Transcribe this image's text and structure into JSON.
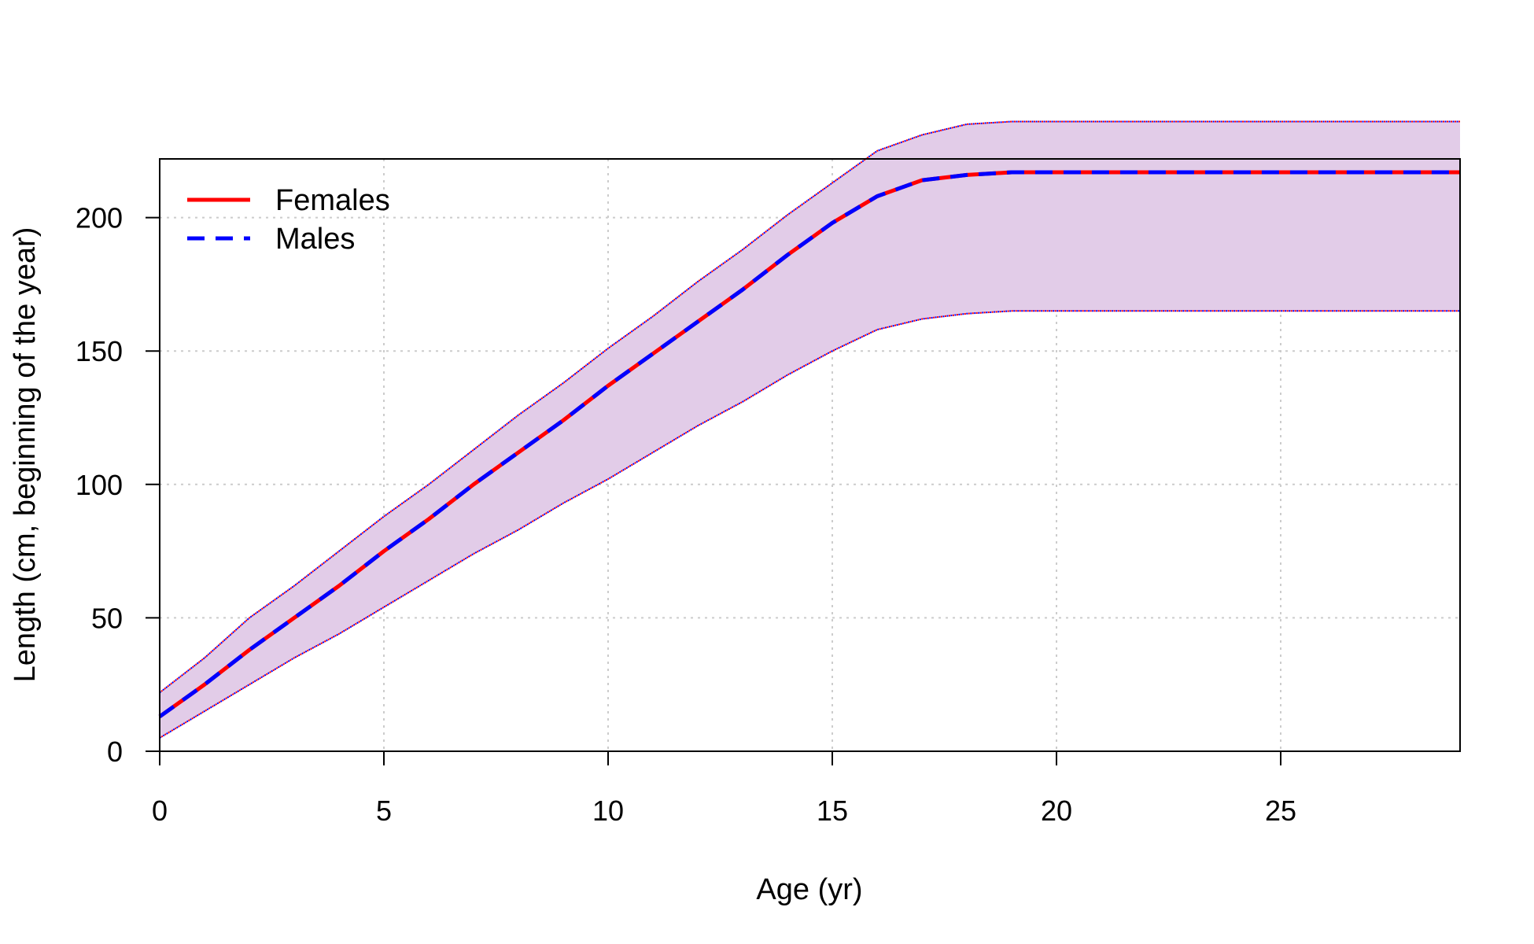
{
  "chart_data": {
    "type": "line",
    "xlabel": "Age (yr)",
    "ylabel": "Length (cm, beginning of the year)",
    "xlim": [
      0,
      29
    ],
    "ylim": [
      0,
      222
    ],
    "x_ticks": [
      0,
      5,
      10,
      15,
      20,
      25
    ],
    "y_ticks": [
      0,
      50,
      100,
      150,
      200
    ],
    "grid": true,
    "legend_position": "top-left",
    "x": [
      0,
      1,
      2,
      3,
      4,
      5,
      6,
      7,
      8,
      9,
      10,
      11,
      12,
      13,
      14,
      15,
      16,
      17,
      18,
      19,
      20,
      21,
      22,
      23,
      24,
      25,
      26,
      27,
      28,
      29
    ],
    "series": [
      {
        "name": "Females",
        "color": "#ff0000",
        "line_style": "solid",
        "values": [
          13,
          25,
          38,
          50,
          62,
          75,
          87,
          100,
          112,
          124,
          137,
          149,
          161,
          173,
          186,
          198,
          208,
          214,
          216,
          217,
          217,
          217,
          217,
          217,
          217,
          217,
          217,
          217,
          217,
          217
        ]
      },
      {
        "name": "Males",
        "color": "#0000ff",
        "line_style": "dashed",
        "values": [
          13,
          25,
          38,
          50,
          62,
          75,
          87,
          100,
          112,
          124,
          137,
          149,
          161,
          173,
          186,
          198,
          208,
          214,
          216,
          217,
          217,
          217,
          217,
          217,
          217,
          217,
          217,
          217,
          217,
          217
        ]
      }
    ],
    "band": {
      "fill_color": "#e2cce8",
      "border_color": "#0000ff",
      "lower": [
        5,
        15,
        25,
        35,
        44,
        54,
        64,
        74,
        83,
        93,
        102,
        112,
        122,
        131,
        141,
        150,
        158,
        162,
        164,
        165,
        165,
        165,
        165,
        165,
        165,
        165,
        165,
        165,
        165,
        165
      ],
      "upper": [
        22,
        35,
        50,
        62,
        75,
        88,
        100,
        113,
        126,
        138,
        151,
        163,
        176,
        188,
        201,
        213,
        225,
        231,
        235,
        236,
        236,
        236,
        236,
        236,
        236,
        236,
        236,
        236,
        236,
        236
      ]
    }
  }
}
